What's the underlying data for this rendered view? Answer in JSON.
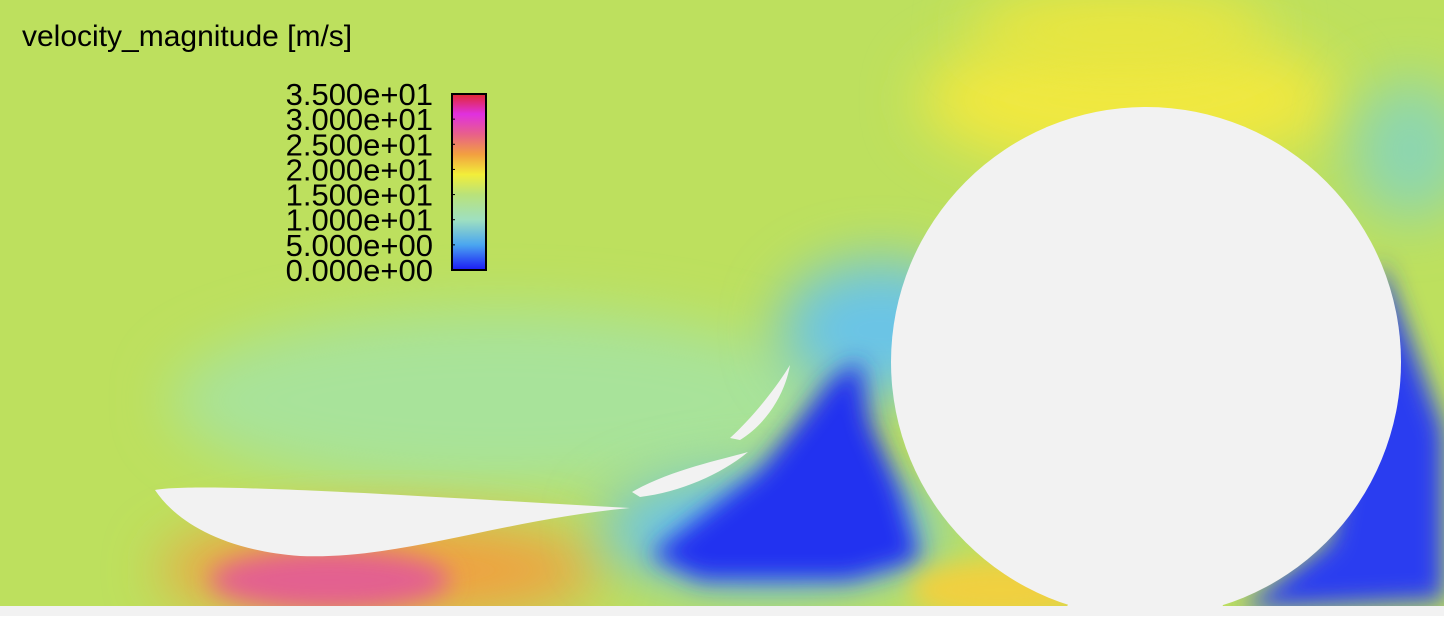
{
  "chart_data": {
    "type": "contour",
    "title": "velocity_magnitude [m/s]",
    "clim": [
      0,
      35
    ],
    "cticks": [
      {
        "value": 35,
        "label": "3.500e+01"
      },
      {
        "value": 30,
        "label": "3.000e+01"
      },
      {
        "value": 25,
        "label": "2.500e+01"
      },
      {
        "value": 20,
        "label": "2.000e+01"
      },
      {
        "value": 15,
        "label": "1.500e+01"
      },
      {
        "value": 10,
        "label": "1.000e+01"
      },
      {
        "value": 5,
        "label": "5.000e+00"
      },
      {
        "value": 0,
        "label": "0.000e+00"
      }
    ],
    "colormap": [
      {
        "value": 0,
        "color": "#1b1bf5"
      },
      {
        "value": 5,
        "color": "#4aa6f0"
      },
      {
        "value": 10,
        "color": "#9fe0c0"
      },
      {
        "value": 15,
        "color": "#b9e27a"
      },
      {
        "value": 19,
        "color": "#f2ee3a"
      },
      {
        "value": 23,
        "color": "#f2a040"
      },
      {
        "value": 27,
        "color": "#e8608a"
      },
      {
        "value": 31,
        "color": "#e030e0"
      },
      {
        "value": 35,
        "color": "#e02830"
      }
    ]
  }
}
